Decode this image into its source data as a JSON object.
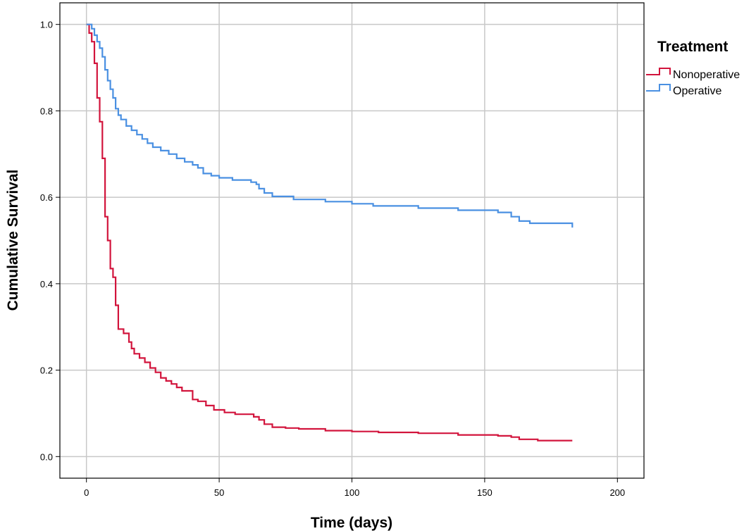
{
  "chart_data": {
    "type": "line",
    "step": true,
    "xlabel": "Time (days)",
    "ylabel": "Cumulative Survival",
    "xlim": [
      -10,
      210
    ],
    "ylim": [
      -0.05,
      1.05
    ],
    "xticks": [
      0,
      50,
      100,
      150,
      200
    ],
    "yticks": [
      0.0,
      0.2,
      0.4,
      0.6,
      0.8,
      1.0
    ],
    "xtick_labels": [
      "0",
      "50",
      "100",
      "150",
      "200"
    ],
    "ytick_labels": [
      "0.0",
      "0.2",
      "0.4",
      "0.6",
      "0.8",
      "1.0"
    ],
    "grid": true,
    "legend": {
      "title": "Treatment",
      "placement": "right"
    },
    "series": [
      {
        "name": "Nonoperative",
        "color": "#d2143c",
        "x": [
          0,
          1,
          2,
          3,
          4,
          5,
          6,
          7,
          8,
          9,
          10,
          11,
          12,
          14,
          16,
          17,
          18,
          20,
          22,
          24,
          26,
          28,
          30,
          32,
          34,
          36,
          40,
          42,
          45,
          48,
          52,
          56,
          63,
          65,
          67,
          70,
          75,
          80,
          90,
          100,
          110,
          125,
          140,
          155,
          160,
          163,
          170,
          183
        ],
        "y": [
          1.0,
          0.98,
          0.96,
          0.91,
          0.83,
          0.775,
          0.69,
          0.555,
          0.5,
          0.435,
          0.415,
          0.35,
          0.295,
          0.285,
          0.265,
          0.25,
          0.238,
          0.228,
          0.218,
          0.205,
          0.195,
          0.182,
          0.175,
          0.168,
          0.16,
          0.152,
          0.132,
          0.128,
          0.118,
          0.108,
          0.102,
          0.098,
          0.092,
          0.085,
          0.075,
          0.068,
          0.066,
          0.064,
          0.06,
          0.058,
          0.056,
          0.054,
          0.05,
          0.048,
          0.045,
          0.04,
          0.037,
          0.037
        ]
      },
      {
        "name": "Operative",
        "color": "#4a90e2",
        "x": [
          0,
          2,
          3,
          4,
          5,
          6,
          7,
          8,
          9,
          10,
          11,
          12,
          13,
          15,
          17,
          19,
          21,
          23,
          25,
          28,
          31,
          34,
          37,
          40,
          42,
          44,
          47,
          50,
          55,
          62,
          64,
          65,
          67,
          70,
          78,
          90,
          100,
          108,
          125,
          140,
          155,
          160,
          163,
          167,
          183
        ],
        "y": [
          1.0,
          0.99,
          0.975,
          0.96,
          0.945,
          0.925,
          0.895,
          0.87,
          0.85,
          0.83,
          0.805,
          0.79,
          0.78,
          0.765,
          0.755,
          0.745,
          0.735,
          0.725,
          0.716,
          0.708,
          0.7,
          0.69,
          0.682,
          0.675,
          0.668,
          0.655,
          0.65,
          0.645,
          0.64,
          0.635,
          0.63,
          0.62,
          0.61,
          0.602,
          0.595,
          0.59,
          0.585,
          0.58,
          0.575,
          0.57,
          0.565,
          0.555,
          0.545,
          0.54,
          0.53
        ]
      }
    ]
  }
}
